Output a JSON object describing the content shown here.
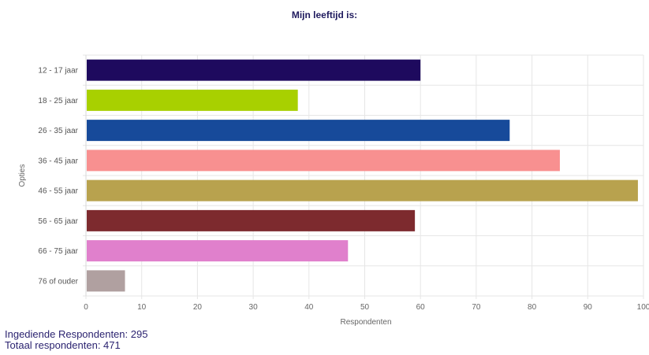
{
  "chart_data": {
    "type": "bar",
    "orientation": "horizontal",
    "title": "Mijn leeftijd is:",
    "xlabel": "Respondenten",
    "ylabel": "Opties",
    "xlim": [
      0,
      100
    ],
    "xticks": [
      0,
      10,
      20,
      30,
      40,
      50,
      60,
      70,
      80,
      90,
      100
    ],
    "grid": true,
    "categories": [
      "12 - 17 jaar",
      "18 - 25 jaar",
      "26 - 35 jaar",
      "36 - 45 jaar",
      "46 - 55 jaar",
      "56 - 65 jaar",
      "66 - 75 jaar",
      "76 of ouder"
    ],
    "values": [
      60,
      38,
      76,
      85,
      99,
      59,
      47,
      7
    ],
    "colors": [
      "#1e0a5e",
      "#a8d000",
      "#174a9a",
      "#f89090",
      "#b8a24e",
      "#7d2a2e",
      "#e080cc",
      "#b0a0a0"
    ]
  },
  "footer": {
    "submitted": "Ingediende Respondenten: 295",
    "total": "Totaal respondenten: 471"
  }
}
